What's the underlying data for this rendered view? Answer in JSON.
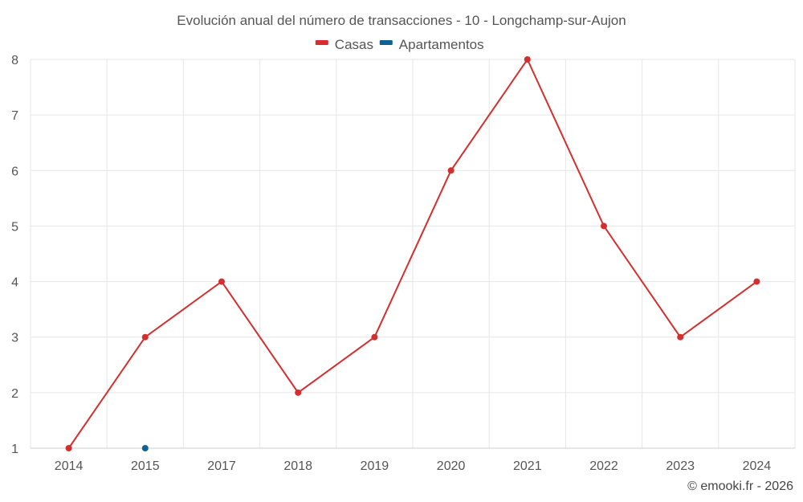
{
  "chart_data": {
    "type": "line",
    "title": "Evolución anual del número de transacciones - 10 - Longchamp-sur-Aujon",
    "categories": [
      "2014",
      "2015",
      "2017",
      "2018",
      "2019",
      "2020",
      "2021",
      "2022",
      "2023",
      "2024"
    ],
    "series": [
      {
        "name": "Casas",
        "color": "#d32f2f",
        "values": [
          1,
          3,
          4,
          2,
          3,
          6,
          8,
          5,
          3,
          4
        ]
      },
      {
        "name": "Apartamentos",
        "color": "#0d6396",
        "values": [
          null,
          1,
          null,
          null,
          null,
          null,
          null,
          null,
          null,
          null
        ]
      }
    ],
    "ylim": [
      1,
      8
    ],
    "yticks": [
      1,
      2,
      3,
      4,
      5,
      6,
      7,
      8
    ],
    "grid": true,
    "legend_position": "top-center",
    "xlabel": "",
    "ylabel": ""
  },
  "credit": "© emooki.fr - 2026"
}
